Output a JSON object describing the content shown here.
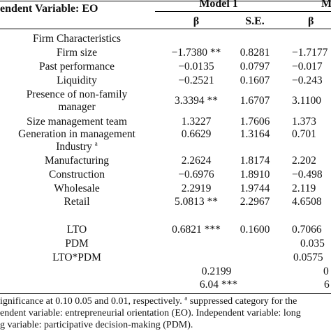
{
  "header": {
    "dep_var": "endent Variable: EO",
    "model1": "Model 1",
    "model2": "M",
    "beta": "β",
    "se": "S.E."
  },
  "rows": [
    {
      "label": "Firm Characteristics",
      "b1": "",
      "se1": "",
      "b2": ""
    },
    {
      "label": "Firm size",
      "b1": "−1.7380 **",
      "se1": "0.8281",
      "b2": "−1.7177"
    },
    {
      "label": "Past performance",
      "b1": "−0.0135",
      "se1": "0.0797",
      "b2": "−0.017"
    },
    {
      "label": "Liquidity",
      "b1": "−0.2521",
      "se1": "0.1607",
      "b2": "−0.243"
    },
    {
      "label": "Presence of non-family",
      "b1": "3.3394 **",
      "se1": "1.6707",
      "b2": "3.1100"
    },
    {
      "label": "manager",
      "b1": "",
      "se1": "",
      "b2": ""
    },
    {
      "label": "Size management team",
      "b1": "1.3227",
      "se1": "1.7606",
      "b2": "1.373"
    },
    {
      "label": "Generation in management",
      "b1": "0.6629",
      "se1": "1.3164",
      "b2": "0.701"
    },
    {
      "label": "Industry",
      "sup": "a",
      "b1": "",
      "se1": "",
      "b2": ""
    },
    {
      "label": "Manufacturing",
      "b1": "2.2624",
      "se1": "1.8174",
      "b2": "2.202"
    },
    {
      "label": "Construction",
      "b1": "−0.6976",
      "se1": "1.8910",
      "b2": "−0.498"
    },
    {
      "label": "Wholesale",
      "b1": "2.2919",
      "se1": "1.9744",
      "b2": "2.119"
    },
    {
      "label": "Retail",
      "b1": "5.0813 **",
      "se1": "2.2967",
      "b2": "4.6508"
    },
    {
      "label": "LTO",
      "b1": "0.6821 ***",
      "se1": "0.1600",
      "b2": "0.7066"
    },
    {
      "label": "PDM",
      "b1": "",
      "se1": "",
      "b2": "0.035"
    },
    {
      "label": "LTO*PDM",
      "b1": "",
      "se1": "",
      "b2": "0.0575"
    },
    {
      "label": "",
      "b1": "0.2199",
      "se1": "",
      "b2": "0"
    },
    {
      "label": "",
      "b1": "6.04 ***",
      "se1": "",
      "b2": "6"
    }
  ],
  "notes": {
    "line1_a": "ignificance at 0.10 0.05 and 0.01, respectively.",
    "line1_sup": "a",
    "line1_b": "suppressed category for the",
    "line2": "endent variable: entrepreneurial orientation (EO). Independent variable: long",
    "line3": "g variable: participative decision-making (PDM)."
  }
}
